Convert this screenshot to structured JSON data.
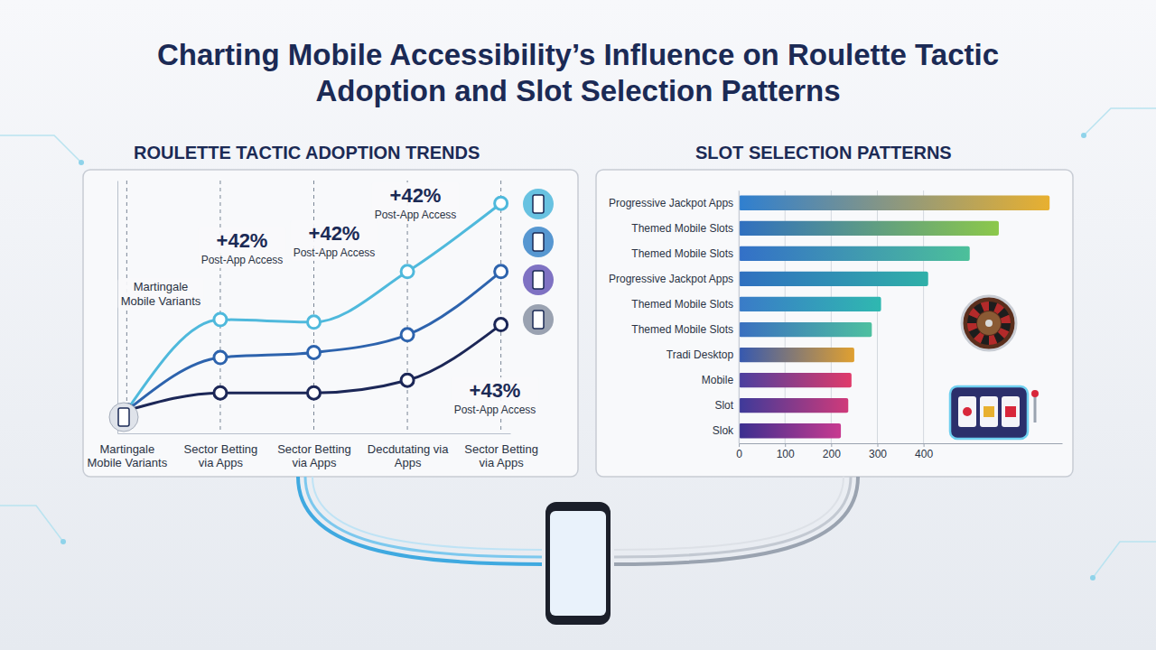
{
  "title": "Charting Mobile Accessibility’s Influence on Roulette Tactic Adoption and Slot Selection Patterns",
  "chart_data": [
    {
      "type": "line",
      "title": "ROULETTE TACTIC ADOPTION TRENDS",
      "categories": [
        "Martingale Mobile Variants",
        "Sector Betting via Apps",
        "Sector Betting via Apps",
        "Decdutating via Apps",
        "Sector Betting via Apps"
      ],
      "series": [
        {
          "color": "#4fb9dc",
          "values": [
            9,
            45,
            44,
            64,
            91
          ]
        },
        {
          "color": "#2d63ad",
          "values": [
            9,
            30,
            32,
            39,
            64
          ]
        },
        {
          "color": "#1c2757",
          "values": [
            9,
            16,
            16,
            21,
            43
          ]
        }
      ],
      "ylim": [
        0,
        100
      ],
      "marker": "circle",
      "grid": true,
      "tick_labels": "x",
      "annotations": [
        {
          "text": "+42%",
          "note": "Post-App Access"
        },
        {
          "text": "+42%",
          "note": "Post-App Access"
        },
        {
          "text": "+42%",
          "note": "Post-App Access"
        },
        {
          "text": "+43%",
          "note": "Post-App Access"
        },
        {
          "text": "Martingale Mobile Variants"
        }
      ]
    },
    {
      "type": "bar",
      "orientation": "horizontal",
      "title": "SLOT SELECTION PATTERNS",
      "categories": [
        "Progressive Jackpot Apps",
        "Themed Mobile Slots",
        "Themed Mobile Slots",
        "Progressive Jackpot Apps",
        "Themed Mobile Slots",
        "Themed Mobile Slots",
        "Tradi Desktop",
        "Mobile",
        "Slot",
        "Slok"
      ],
      "values": [
        673,
        563,
        500,
        410,
        308,
        288,
        250,
        244,
        237,
        221
      ],
      "colors": [
        "#2f7fd0",
        "#2f6fc0",
        "#3370c8",
        "#2f6fc0",
        "#3a7bc8",
        "#3a6fc0",
        "#3558b0",
        "#4a3fa0",
        "#3d3a9a",
        "#3a2f90"
      ],
      "xlim": [
        0,
        700
      ],
      "xticks": [
        0,
        100,
        200,
        300,
        400
      ],
      "grid": true
    }
  ]
}
